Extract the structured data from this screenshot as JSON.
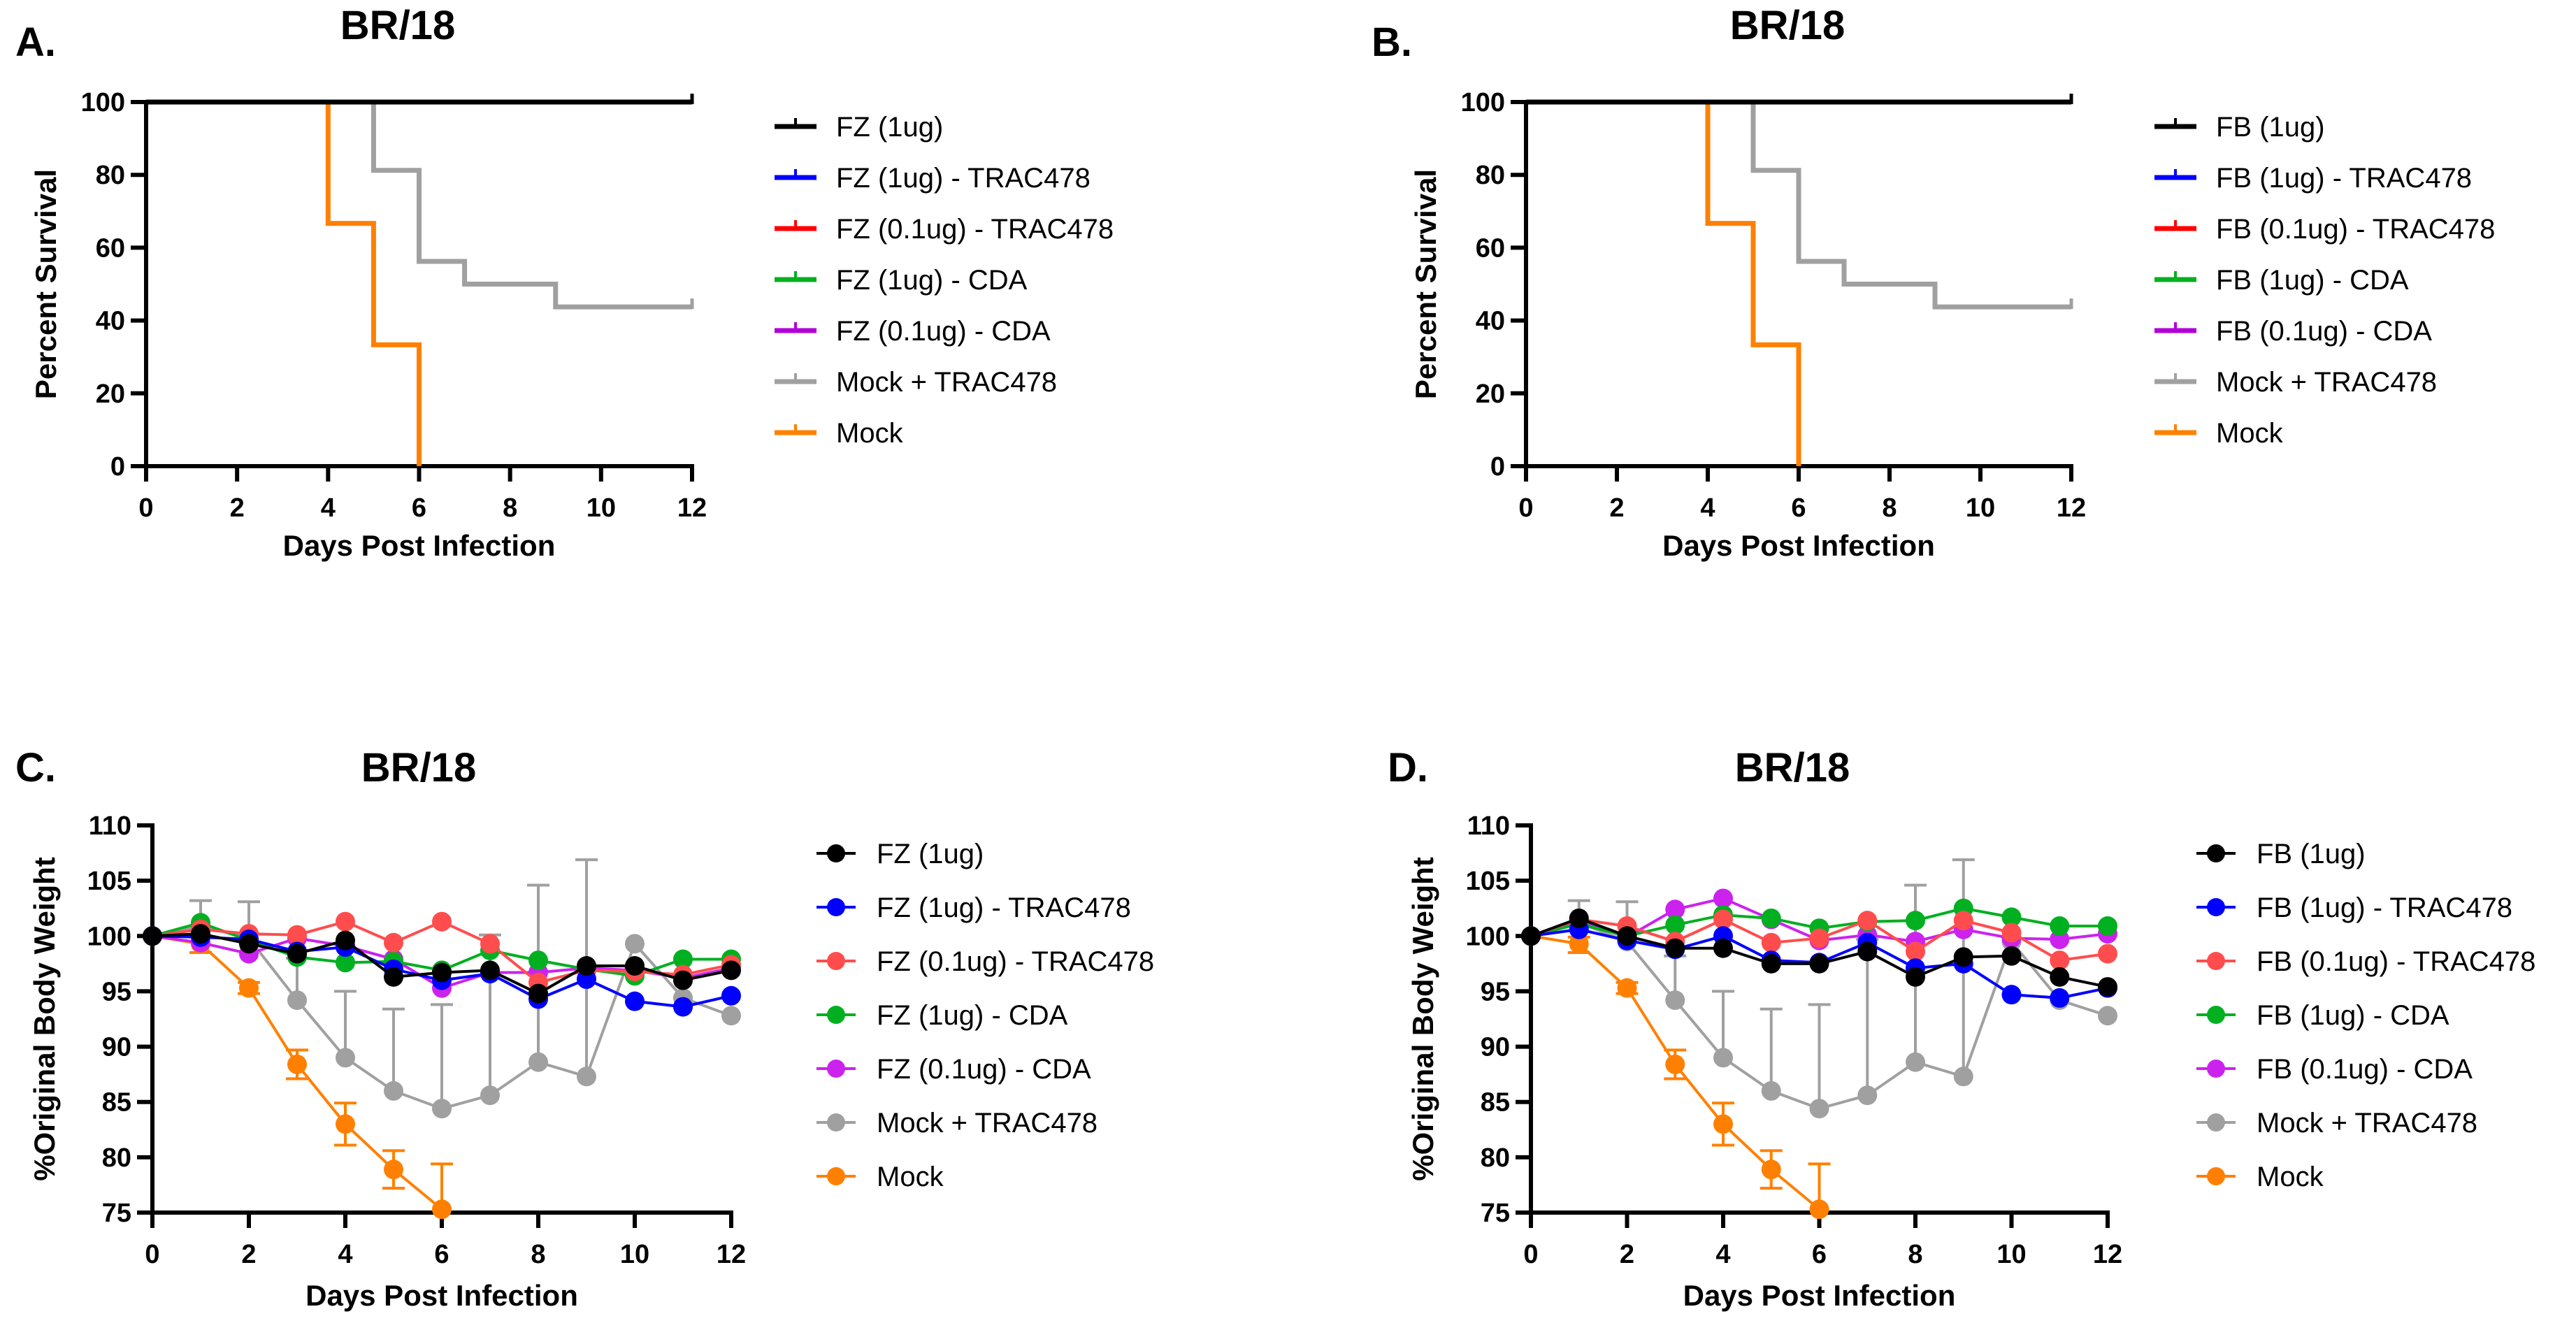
{
  "chart_data": [
    {
      "panel": "A.",
      "type": "line",
      "subtype": "kaplan-meier-step",
      "title": "BR/18",
      "xlabel": "Days Post Infection",
      "ylabel": "Percent Survival",
      "xlim": [
        0,
        12
      ],
      "ylim": [
        0,
        100
      ],
      "xticks": [
        0,
        2,
        4,
        6,
        8,
        10,
        12
      ],
      "yticks": [
        0,
        20,
        40,
        60,
        80,
        100
      ],
      "legend_position": "right",
      "grid": false,
      "series": [
        {
          "name": "FZ (1ug)",
          "color": "#000000",
          "steps": [
            [
              0,
              100
            ],
            [
              12,
              100
            ]
          ]
        },
        {
          "name": "FZ (1ug) - TRAC478",
          "color": "#0000ff",
          "steps": [
            [
              0,
              100
            ],
            [
              12,
              100
            ]
          ]
        },
        {
          "name": "FZ (0.1ug) - TRAC478",
          "color": "#ff0000",
          "steps": [
            [
              0,
              100
            ],
            [
              12,
              100
            ]
          ]
        },
        {
          "name": "FZ (1ug) - CDA",
          "color": "#00b020",
          "steps": [
            [
              0,
              100
            ],
            [
              12,
              100
            ]
          ]
        },
        {
          "name": "FZ (0.1ug) - CDA",
          "color": "#b000d8",
          "steps": [
            [
              0,
              100
            ],
            [
              12,
              100
            ]
          ]
        },
        {
          "name": "Mock + TRAC478",
          "color": "#a0a0a0",
          "steps": [
            [
              0,
              100
            ],
            [
              5,
              81.25
            ],
            [
              6,
              56.25
            ],
            [
              7,
              50
            ],
            [
              9,
              43.75
            ],
            [
              12,
              43.75
            ]
          ]
        },
        {
          "name": "Mock",
          "color": "#ff8000",
          "steps": [
            [
              0,
              100
            ],
            [
              4,
              66.67
            ],
            [
              5,
              33.33
            ],
            [
              6,
              0
            ]
          ]
        }
      ]
    },
    {
      "panel": "B.",
      "type": "line",
      "subtype": "kaplan-meier-step",
      "title": "BR/18",
      "xlabel": "Days Post Infection",
      "ylabel": "Percent Survival",
      "xlim": [
        0,
        12
      ],
      "ylim": [
        0,
        100
      ],
      "xticks": [
        0,
        2,
        4,
        6,
        8,
        10,
        12
      ],
      "yticks": [
        0,
        20,
        40,
        60,
        80,
        100
      ],
      "legend_position": "right",
      "grid": false,
      "series": [
        {
          "name": "FB (1ug)",
          "color": "#000000",
          "steps": [
            [
              0,
              100
            ],
            [
              12,
              100
            ]
          ]
        },
        {
          "name": "FB (1ug) - TRAC478",
          "color": "#0000ff",
          "steps": [
            [
              0,
              100
            ],
            [
              12,
              100
            ]
          ]
        },
        {
          "name": "FB (0.1ug) - TRAC478",
          "color": "#ff0000",
          "steps": [
            [
              0,
              100
            ],
            [
              12,
              100
            ]
          ]
        },
        {
          "name": "FB (1ug) - CDA",
          "color": "#00b020",
          "steps": [
            [
              0,
              100
            ],
            [
              12,
              100
            ]
          ]
        },
        {
          "name": "FB (0.1ug) - CDA",
          "color": "#b000d8",
          "steps": [
            [
              0,
              100
            ],
            [
              12,
              100
            ]
          ]
        },
        {
          "name": "Mock + TRAC478",
          "color": "#a0a0a0",
          "steps": [
            [
              0,
              100
            ],
            [
              5,
              81.25
            ],
            [
              6,
              56.25
            ],
            [
              7,
              50
            ],
            [
              9,
              43.75
            ],
            [
              12,
              43.75
            ]
          ]
        },
        {
          "name": "Mock",
          "color": "#ff8000",
          "steps": [
            [
              0,
              100
            ],
            [
              4,
              66.67
            ],
            [
              5,
              33.33
            ],
            [
              6,
              0
            ]
          ]
        }
      ]
    },
    {
      "panel": "C.",
      "type": "line",
      "title": "BR/18",
      "xlabel": "Days Post Infection",
      "ylabel": "%Original Body Weight",
      "xlim": [
        0,
        12
      ],
      "ylim": [
        75,
        110
      ],
      "xticks": [
        0,
        2,
        4,
        6,
        8,
        10,
        12
      ],
      "yticks": [
        75,
        80,
        85,
        90,
        95,
        100,
        105,
        110
      ],
      "legend_position": "right",
      "grid": false,
      "x": [
        0,
        1,
        2,
        3,
        4,
        5,
        6,
        7,
        8,
        9,
        10,
        11,
        12
      ],
      "series": [
        {
          "name": "FZ (1ug)",
          "color": "#000000",
          "values": [
            100,
            100.2,
            99.3,
            98.4,
            99.6,
            96.3,
            96.7,
            96.9,
            94.8,
            97.3,
            97.3,
            96.0,
            96.9
          ]
        },
        {
          "name": "FZ (1ug) - TRAC478",
          "color": "#0000ff",
          "values": [
            100,
            99.9,
            99.7,
            98.6,
            99.0,
            97.0,
            96.0,
            96.6,
            94.3,
            96.1,
            94.1,
            93.6,
            94.6
          ]
        },
        {
          "name": "FZ (0.1ug) - TRAC478",
          "color": "#ff4d4d",
          "values": [
            100,
            100.6,
            100.2,
            100.1,
            101.3,
            99.4,
            101.3,
            99.3,
            95.8,
            96.9,
            96.8,
            96.5,
            97.4
          ]
        },
        {
          "name": "FZ (1ug) - CDA",
          "color": "#00b020",
          "values": [
            100,
            101.2,
            99.6,
            98.1,
            97.6,
            97.7,
            96.9,
            98.7,
            97.8,
            97.0,
            96.4,
            97.9,
            97.9
          ]
        },
        {
          "name": "FZ (0.1ug) - CDA",
          "color": "#cc22ee",
          "values": [
            100,
            99.4,
            98.4,
            99.8,
            99.1,
            97.9,
            95.3,
            96.7,
            96.7,
            97.1,
            96.9,
            96.2,
            97.1
          ]
        },
        {
          "name": "Mock + TRAC478",
          "color": "#a0a0a0",
          "values": [
            100,
            100.9,
            99.8,
            94.2,
            89.0,
            86.0,
            84.4,
            85.6,
            88.6,
            87.3,
            99.3,
            94.4,
            92.8
          ],
          "error_upper": [
            null,
            103.2,
            103.1,
            98.0,
            95.0,
            93.4,
            93.8,
            100.1,
            104.6,
            106.9,
            null,
            null,
            null
          ]
        },
        {
          "name": "Mock",
          "color": "#ff8000",
          "values": [
            100,
            99.3,
            95.3,
            88.4,
            83.0,
            78.9,
            75.3
          ],
          "error_upper": [
            null,
            99.9,
            95.8,
            89.7,
            84.9,
            80.6,
            79.4
          ],
          "error_lower": [
            null,
            98.5,
            94.8,
            87.1,
            81.1,
            77.2,
            null
          ]
        }
      ]
    },
    {
      "panel": "D.",
      "type": "line",
      "title": "BR/18",
      "xlabel": "Days Post Infection",
      "ylabel": "%Original Body Weight",
      "xlim": [
        0,
        12
      ],
      "ylim": [
        75,
        110
      ],
      "xticks": [
        0,
        2,
        4,
        6,
        8,
        10,
        12
      ],
      "yticks": [
        75,
        80,
        85,
        90,
        95,
        100,
        105,
        110
      ],
      "legend_position": "right",
      "grid": false,
      "x": [
        0,
        1,
        2,
        3,
        4,
        5,
        6,
        7,
        8,
        9,
        10,
        11,
        12
      ],
      "series": [
        {
          "name": "FB (1ug)",
          "color": "#000000",
          "values": [
            100,
            101.6,
            100.0,
            98.9,
            98.9,
            97.5,
            97.5,
            98.6,
            96.3,
            98.1,
            98.2,
            96.3,
            95.4
          ]
        },
        {
          "name": "FB (1ug) - TRAC478",
          "color": "#0000ff",
          "values": [
            100,
            100.6,
            99.6,
            98.8,
            100.0,
            97.8,
            97.6,
            99.4,
            97.1,
            97.5,
            94.7,
            94.4,
            95.3
          ]
        },
        {
          "name": "FB (0.1ug) - TRAC478",
          "color": "#ff4d4d",
          "values": [
            100,
            101.5,
            100.9,
            99.5,
            101.5,
            99.4,
            99.8,
            101.4,
            98.6,
            101.4,
            100.3,
            97.8,
            98.4
          ]
        },
        {
          "name": "FB (1ug) - CDA",
          "color": "#00b020",
          "values": [
            100,
            101.1,
            100.0,
            101.0,
            101.9,
            101.6,
            100.7,
            101.3,
            101.4,
            102.5,
            101.7,
            100.9,
            100.9
          ]
        },
        {
          "name": "FB (0.1ug) - CDA",
          "color": "#cc22ee",
          "values": [
            100,
            101.3,
            99.9,
            102.4,
            103.4,
            101.5,
            99.6,
            100.1,
            99.5,
            100.6,
            99.8,
            99.7,
            100.2
          ]
        },
        {
          "name": "Mock + TRAC478",
          "color": "#a0a0a0",
          "values": [
            100,
            101.2,
            99.5,
            94.2,
            89.0,
            86.0,
            84.4,
            85.6,
            88.6,
            87.3,
            99.5,
            94.2,
            92.8
          ],
          "error_upper": [
            null,
            103.2,
            103.1,
            98.2,
            95.0,
            93.4,
            93.8,
            99.7,
            104.6,
            106.9,
            null,
            null,
            null
          ]
        },
        {
          "name": "Mock",
          "color": "#ff8000",
          "values": [
            100,
            99.3,
            95.3,
            88.4,
            83.0,
            78.9,
            75.3
          ],
          "error_upper": [
            null,
            99.9,
            95.8,
            89.7,
            84.9,
            80.6,
            79.4
          ],
          "error_lower": [
            null,
            98.5,
            94.8,
            87.1,
            81.1,
            77.2,
            null
          ]
        }
      ]
    }
  ]
}
